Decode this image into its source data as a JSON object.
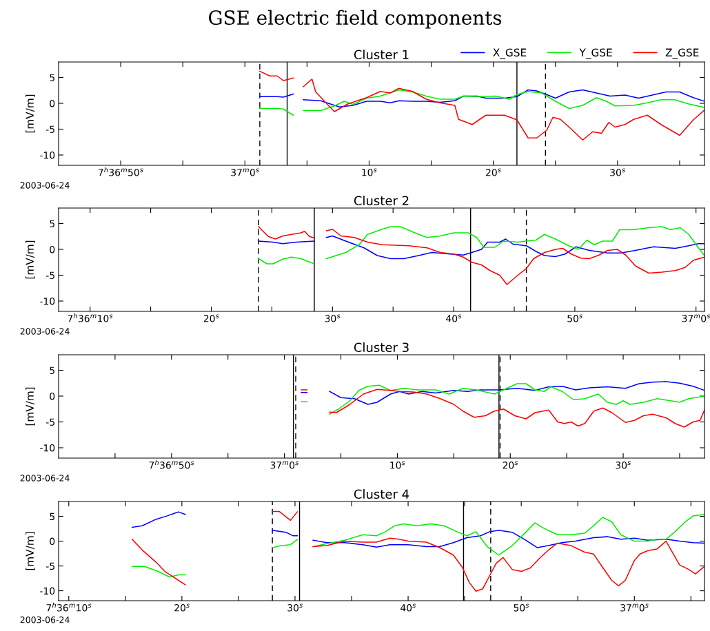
{
  "chart_data": [
    {
      "type": "line",
      "title": "GSE electric field components",
      "subtitle": "Cluster 1",
      "ylabel": "[mV/m]",
      "legend": "top right",
      "grid": false,
      "xlim": [
        "2003-06-24T07:36:45",
        "2003-06-24T07:37:37"
      ],
      "ylim": [
        -12,
        8
      ],
      "yticks": [
        -10,
        -5,
        0,
        5
      ],
      "xticks": [
        {
          "value": "2003-06-24T07:36:50",
          "label": "7$^{h}$36$^{m}$50$^{s}$"
        },
        {
          "value": "2003-06-24T07:36:55",
          "label": null
        },
        {
          "value": "2003-06-24T07:37:00",
          "label": "37$^{m}$0$^{s}$"
        },
        {
          "value": "2003-06-24T07:37:05",
          "label": null
        },
        {
          "value": "2003-06-24T07:37:10",
          "label": "10$^{s}$"
        },
        {
          "value": "2003-06-24T07:37:15",
          "label": null
        },
        {
          "value": "2003-06-24T07:37:20",
          "label": "20$^{s}$"
        },
        {
          "value": "2003-06-24T07:37:25",
          "label": null
        },
        {
          "value": "2003-06-24T07:37:30",
          "label": "30$^{s}$"
        },
        {
          "value": "2003-06-24T07:37:35",
          "label": null
        }
      ],
      "annotations": [
        "2003-06-24"
      ],
      "ref_lines": [
        {
          "axis": "x",
          "value": "2003-06-24T07:37:01.2",
          "color": "#000000",
          "line_style": "dashed"
        },
        {
          "axis": "x",
          "value": "2003-06-24T07:37:03.4",
          "color": "#000000",
          "line_style": "solid"
        },
        {
          "axis": "x",
          "value": "2003-06-24T07:37:21.9",
          "color": "#000000",
          "line_style": "solid"
        },
        {
          "axis": "x",
          "value": "2003-06-24T07:37:24.2",
          "color": "#000000",
          "line_style": "dashed"
        }
      ],
      "series": [
        {
          "name": "X_GSE",
          "color": "#0000ff",
          "x": [
            "2003-06-24T07:37:01.2",
            "2003-06-24T07:37:02.6",
            "2003-06-24T07:37:03.1",
            "2003-06-24T07:37:03.9",
            "2003-06-24T07:37:04.3",
            "2003-06-24T07:37:04.7",
            "2003-06-24T07:37:06.1",
            "2003-06-24T07:37:07.6",
            "2003-06-24T07:37:08.7",
            "2003-06-24T07:37:09.8",
            "2003-06-24T07:37:10.9",
            "2003-06-24T07:37:11.7",
            "2003-06-24T07:37:12.4",
            "2003-06-24T07:37:13.5",
            "2003-06-24T07:37:14.6",
            "2003-06-24T07:37:15.7",
            "2003-06-24T07:37:16.9",
            "2003-06-24T07:37:17.6",
            "2003-06-24T07:37:18.7",
            "2003-06-24T07:37:19.4",
            "2003-06-24T07:37:20.9",
            "2003-06-24T07:37:21.9",
            "2003-06-24T07:37:22.8",
            "2003-06-24T07:37:23.5",
            "2003-06-24T07:37:24.3",
            "2003-06-24T07:37:25.0",
            "2003-06-24T07:37:26.1",
            "2003-06-24T07:37:27.2",
            "2003-06-24T07:37:28.3",
            "2003-06-24T07:37:29.4",
            "2003-06-24T07:37:30.6",
            "2003-06-24T07:37:31.7",
            "2003-06-24T07:37:32.8",
            "2003-06-24T07:37:33.9",
            "2003-06-24T07:37:35.0",
            "2003-06-24T07:37:36.1",
            "2003-06-24T07:37:37.0"
          ],
          "values": [
            1.3,
            1.3,
            1.2,
            1.8,
            null,
            0.7,
            0.5,
            -0.7,
            -0.4,
            0.4,
            0.4,
            0.1,
            0.5,
            0.4,
            0.4,
            0.2,
            0.5,
            1.4,
            1.4,
            1.0,
            1.0,
            1.3,
            2.6,
            2.4,
            1.7,
            1.0,
            2.2,
            2.6,
            2.0,
            1.4,
            1.6,
            1.0,
            1.6,
            2.2,
            2.2,
            1.1,
            0.4
          ]
        },
        {
          "name": "Y_GSE",
          "color": "#00ee00",
          "x": [
            "2003-06-24T07:37:01.2",
            "2003-06-24T07:37:02.6",
            "2003-06-24T07:37:03.1",
            "2003-06-24T07:37:03.9",
            "2003-06-24T07:37:04.3",
            "2003-06-24T07:37:04.7",
            "2003-06-24T07:37:06.1",
            "2003-06-24T07:37:07.2",
            "2003-06-24T07:37:08.0",
            "2003-06-24T07:37:08.7",
            "2003-06-24T07:37:09.8",
            "2003-06-24T07:37:10.9",
            "2003-06-24T07:37:12.4",
            "2003-06-24T07:37:13.5",
            "2003-06-24T07:37:14.6",
            "2003-06-24T07:37:15.7",
            "2003-06-24T07:37:16.9",
            "2003-06-24T07:37:17.6",
            "2003-06-24T07:37:18.7",
            "2003-06-24T07:37:20.2",
            "2003-06-24T07:37:21.3",
            "2003-06-24T07:37:21.9",
            "2003-06-24T07:37:22.8",
            "2003-06-24T07:37:23.9",
            "2003-06-24T07:37:25.0",
            "2003-06-24T07:37:26.1",
            "2003-06-24T07:37:27.2",
            "2003-06-24T07:37:28.3",
            "2003-06-24T07:37:29.1",
            "2003-06-24T07:37:29.8",
            "2003-06-24T07:37:31.3",
            "2003-06-24T07:37:32.4",
            "2003-06-24T07:37:33.5",
            "2003-06-24T07:37:34.6",
            "2003-06-24T07:37:35.7",
            "2003-06-24T07:37:37.0"
          ],
          "values": [
            -1.0,
            -1.0,
            -1.1,
            -2.3,
            null,
            -1.4,
            -1.4,
            -0.5,
            0.4,
            -0.2,
            1.0,
            1.4,
            2.6,
            2.2,
            1.4,
            0.8,
            0.8,
            1.4,
            1.3,
            1.4,
            0.8,
            1.7,
            2.3,
            2.0,
            0.4,
            -1.0,
            -0.4,
            1.1,
            0.4,
            -0.5,
            -0.4,
            0.1,
            0.7,
            0.7,
            -0.1,
            -0.8
          ]
        },
        {
          "name": "Z_GSE",
          "color": "#ff0000",
          "x": [
            "2003-06-24T07:37:01.2",
            "2003-06-24T07:37:02.0",
            "2003-06-24T07:37:02.6",
            "2003-06-24T07:37:03.1",
            "2003-06-24T07:37:03.9",
            "2003-06-24T07:37:04.3",
            "2003-06-24T07:37:04.7",
            "2003-06-24T07:37:05.4",
            "2003-06-24T07:37:05.7",
            "2003-06-24T07:37:07.2",
            "2003-06-24T07:37:08.3",
            "2003-06-24T07:37:09.8",
            "2003-06-24T07:37:10.9",
            "2003-06-24T07:37:11.7",
            "2003-06-24T07:37:12.4",
            "2003-06-24T07:37:13.5",
            "2003-06-24T07:37:14.6",
            "2003-06-24T07:37:15.7",
            "2003-06-24T07:37:16.9",
            "2003-06-24T07:37:17.2",
            "2003-06-24T07:37:18.3",
            "2003-06-24T07:37:19.4",
            "2003-06-24T07:37:20.9",
            "2003-06-24T07:37:21.9",
            "2003-06-24T07:37:22.8",
            "2003-06-24T07:37:23.5",
            "2003-06-24T07:37:24.3",
            "2003-06-24T07:37:24.8",
            "2003-06-24T07:37:25.4",
            "2003-06-24T07:37:26.1",
            "2003-06-24T07:37:27.2",
            "2003-06-24T07:37:28.0",
            "2003-06-24T07:37:28.7",
            "2003-06-24T07:37:29.3",
            "2003-06-24T07:37:29.8",
            "2003-06-24T07:37:30.6",
            "2003-06-24T07:37:31.3",
            "2003-06-24T07:37:32.4",
            "2003-06-24T07:37:33.5",
            "2003-06-24T07:37:35.0",
            "2003-06-24T07:37:36.1",
            "2003-06-24T07:37:37.0"
          ],
          "values": [
            6.2,
            5.3,
            5.3,
            4.4,
            4.9,
            null,
            3.2,
            4.7,
            2.2,
            -1.6,
            -0.1,
            1.1,
            2.3,
            2.0,
            2.9,
            2.3,
            0.8,
            0.1,
            -0.4,
            -3.1,
            -4.1,
            -2.3,
            -2.3,
            -3.2,
            -6.7,
            -6.7,
            -5.2,
            -2.7,
            -3.1,
            -4.6,
            -7.1,
            -5.5,
            -5.8,
            -3.7,
            -4.6,
            -4.1,
            -3.1,
            -2.3,
            -4.1,
            -6.2,
            -3.2,
            -1.3
          ]
        }
      ]
    },
    {
      "type": "line",
      "title": "Cluster 2",
      "ylabel": "[mV/m]",
      "grid": false,
      "xlim": [
        "2003-06-24T07:36:07.4",
        "2003-06-24T07:37:00.7"
      ],
      "ylim": [
        -12,
        8
      ],
      "yticks": [
        -10,
        -5,
        0,
        5
      ],
      "xticks": [
        {
          "value": "2003-06-24T07:36:10",
          "label": "7$^{h}$36$^{m}$10$^{s}$"
        },
        {
          "value": "2003-06-24T07:36:15",
          "label": null
        },
        {
          "value": "2003-06-24T07:36:20",
          "label": "20$^{s}$"
        },
        {
          "value": "2003-06-24T07:36:25",
          "label": null
        },
        {
          "value": "2003-06-24T07:36:30",
          "label": "30$^{s}$"
        },
        {
          "value": "2003-06-24T07:36:35",
          "label": null
        },
        {
          "value": "2003-06-24T07:36:40",
          "label": "40$^{s}$"
        },
        {
          "value": "2003-06-24T07:36:45",
          "label": null
        },
        {
          "value": "2003-06-24T07:36:50",
          "label": "50$^{s}$"
        },
        {
          "value": "2003-06-24T07:36:55",
          "label": null
        },
        {
          "value": "2003-06-24T07:37:00",
          "label": "37$^{m}$0$^{s}$"
        }
      ],
      "annotations": [
        "2003-06-24"
      ],
      "ref_lines": [
        {
          "axis": "x",
          "value": "2003-06-24T07:36:23.9",
          "color": "#000000",
          "line_style": "dashed"
        },
        {
          "axis": "x",
          "value": "2003-06-24T07:36:28.5",
          "color": "#000000",
          "line_style": "solid"
        },
        {
          "axis": "x",
          "value": "2003-06-24T07:36:41.4",
          "color": "#000000",
          "line_style": "solid"
        },
        {
          "axis": "x",
          "value": "2003-06-24T07:36:46.0",
          "color": "#000000",
          "line_style": "dashed"
        }
      ],
      "series": [
        {
          "color": "#0000ff",
          "x": [
            "2003-06-24T07:36:23.9",
            "2003-06-24T07:36:25.1",
            "2003-06-24T07:36:25.9",
            "2003-06-24T07:36:27.0",
            "2003-06-24T07:36:28.5",
            "2003-06-24T07:36:29.0",
            "2003-06-24T07:36:29.5",
            "2003-06-24T07:36:30.0",
            "2003-06-24T07:36:31.1",
            "2003-06-24T07:36:32.6",
            "2003-06-24T07:36:33.7",
            "2003-06-24T07:36:34.8",
            "2003-06-24T07:36:35.9",
            "2003-06-24T07:36:37.1",
            "2003-06-24T07:36:38.2",
            "2003-06-24T07:36:39.7",
            "2003-06-24T07:36:40.8",
            "2003-06-24T07:36:41.5",
            "2003-06-24T07:36:42.3",
            "2003-06-24T07:36:42.8",
            "2003-06-24T07:36:43.8",
            "2003-06-24T07:36:44.3",
            "2003-06-24T07:36:44.9",
            "2003-06-24T07:36:46.0",
            "2003-06-24T07:36:46.8",
            "2003-06-24T07:36:47.5",
            "2003-06-24T07:36:48.4",
            "2003-06-24T07:36:49.2",
            "2003-06-24T07:36:50.1",
            "2003-06-24T07:36:51.2",
            "2003-06-24T07:36:52.7",
            "2003-06-24T07:36:53.8",
            "2003-06-24T07:36:55.0",
            "2003-06-24T07:36:56.5",
            "2003-06-24T07:36:58.3",
            "2003-06-24T07:36:59.4",
            "2003-06-24T07:37:00.2",
            "2003-06-24T07:37:00.7"
          ],
          "values": [
            1.6,
            1.4,
            1.1,
            1.4,
            1.6,
            null,
            2.3,
            2.6,
            1.6,
            0.3,
            -1.2,
            -1.8,
            -1.8,
            -1.2,
            -0.6,
            -0.9,
            -1.1,
            -0.6,
            0.0,
            1.4,
            1.4,
            2.0,
            1.0,
            0.7,
            -0.4,
            -1.2,
            -1.4,
            -0.9,
            0.5,
            -0.2,
            -0.7,
            -0.7,
            -0.2,
            0.5,
            0.2,
            0.7,
            1.1,
            1.1
          ]
        },
        {
          "color": "#00ee00",
          "x": [
            "2003-06-24T07:36:23.9",
            "2003-06-24T07:36:24.6",
            "2003-06-24T07:36:25.1",
            "2003-06-24T07:36:25.9",
            "2003-06-24T07:36:26.6",
            "2003-06-24T07:36:27.4",
            "2003-06-24T07:36:28.5",
            "2003-06-24T07:36:29.0",
            "2003-06-24T07:36:29.5",
            "2003-06-24T07:36:31.1",
            "2003-06-24T07:36:32.2",
            "2003-06-24T07:36:32.9",
            "2003-06-24T07:36:34.1",
            "2003-06-24T07:36:34.8",
            "2003-06-24T07:36:35.6",
            "2003-06-24T07:36:36.7",
            "2003-06-24T07:36:37.8",
            "2003-06-24T07:36:38.9",
            "2003-06-24T07:36:40.0",
            "2003-06-24T07:36:41.2",
            "2003-06-24T07:36:41.9",
            "2003-06-24T07:36:42.5",
            "2003-06-24T07:36:43.4",
            "2003-06-24T07:36:44.1",
            "2003-06-24T07:36:45.3",
            "2003-06-24T07:36:46.0",
            "2003-06-24T07:36:46.8",
            "2003-06-24T07:36:47.5",
            "2003-06-24T07:36:48.4",
            "2003-06-24T07:36:49.5",
            "2003-06-24T07:36:50.3",
            "2003-06-24T07:36:51.0",
            "2003-06-24T07:36:51.6",
            "2003-06-24T07:36:52.3",
            "2003-06-24T07:36:53.1",
            "2003-06-24T07:36:53.7",
            "2003-06-24T07:36:54.8",
            "2003-06-24T07:36:56.1",
            "2003-06-24T07:36:57.2",
            "2003-06-24T07:36:57.9",
            "2003-06-24T07:36:58.7",
            "2003-06-24T07:36:59.4",
            "2003-06-24T07:37:00.2",
            "2003-06-24T07:37:00.7"
          ],
          "values": [
            -1.8,
            -2.8,
            -2.8,
            -1.9,
            -1.5,
            -1.8,
            -2.8,
            null,
            -1.8,
            -0.6,
            0.9,
            2.9,
            3.9,
            4.4,
            4.4,
            3.3,
            2.3,
            2.6,
            3.2,
            3.2,
            2.3,
            0.4,
            0.4,
            1.6,
            1.4,
            1.6,
            1.8,
            2.9,
            2.0,
            0.7,
            0.0,
            1.8,
            0.9,
            1.6,
            1.6,
            3.8,
            3.8,
            4.2,
            4.4,
            3.8,
            4.2,
            2.9,
            0.3,
            -1.2
          ]
        },
        {
          "color": "#ff0000",
          "x": [
            "2003-06-24T07:36:23.9",
            "2003-06-24T07:36:24.7",
            "2003-06-24T07:36:25.3",
            "2003-06-24T07:36:25.9",
            "2003-06-24T07:36:27.4",
            "2003-06-24T07:36:27.7",
            "2003-06-24T07:36:28.1",
            "2003-06-24T07:36:28.5",
            "2003-06-24T07:36:29.0",
            "2003-06-24T07:36:29.5",
            "2003-06-24T07:36:30.0",
            "2003-06-24T07:36:30.7",
            "2003-06-24T07:36:31.8",
            "2003-06-24T07:36:32.9",
            "2003-06-24T07:36:34.1",
            "2003-06-24T07:36:36.3",
            "2003-06-24T07:36:37.8",
            "2003-06-24T07:36:38.9",
            "2003-06-24T07:36:40.0",
            "2003-06-24T07:36:40.8",
            "2003-06-24T07:36:41.5",
            "2003-06-24T07:36:42.3",
            "2003-06-24T07:36:43.0",
            "2003-06-24T07:36:43.8",
            "2003-06-24T07:36:44.4",
            "2003-06-24T07:36:45.3",
            "2003-06-24T07:36:46.0",
            "2003-06-24T07:36:46.6",
            "2003-06-24T07:36:47.5",
            "2003-06-24T07:36:48.4",
            "2003-06-24T07:36:49.0",
            "2003-06-24T07:36:49.7",
            "2003-06-24T07:36:50.5",
            "2003-06-24T07:36:51.2",
            "2003-06-24T07:36:52.0",
            "2003-06-24T07:36:52.7",
            "2003-06-24T07:36:53.5",
            "2003-06-24T07:36:54.2",
            "2003-06-24T07:36:55.0",
            "2003-06-24T07:36:56.1",
            "2003-06-24T07:36:57.2",
            "2003-06-24T07:36:58.3",
            "2003-06-24T07:36:59.1",
            "2003-06-24T07:36:59.8",
            "2003-06-24T07:37:00.7"
          ],
          "values": [
            4.4,
            2.5,
            2.0,
            2.6,
            3.2,
            3.5,
            2.5,
            2.2,
            null,
            3.6,
            3.9,
            2.6,
            2.3,
            1.4,
            0.9,
            0.7,
            0.3,
            -0.6,
            -0.9,
            -1.5,
            -2.5,
            -3.0,
            -4.1,
            -5.0,
            -6.8,
            -5.0,
            -3.7,
            -1.8,
            -0.6,
            0.0,
            0.2,
            -0.9,
            -1.7,
            -1.8,
            -1.1,
            -0.2,
            0.0,
            -1.1,
            -3.2,
            -4.6,
            -4.4,
            -4.1,
            -3.5,
            -2.1,
            -1.5
          ]
        }
      ]
    },
    {
      "type": "line",
      "title": "Cluster 3",
      "ylabel": "[mV/m]",
      "grid": false,
      "xlim": [
        "2003-06-24T07:36:40",
        "2003-06-24T07:37:37.2"
      ],
      "ylim": [
        -12,
        8
      ],
      "yticks": [
        -10,
        -5,
        0,
        5
      ],
      "xticks": [
        {
          "value": "2003-06-24T07:36:45",
          "label": null
        },
        {
          "value": "2003-06-24T07:36:50",
          "label": "7$^{h}$36$^{m}$50$^{s}$"
        },
        {
          "value": "2003-06-24T07:36:55",
          "label": null
        },
        {
          "value": "2003-06-24T07:37:00",
          "label": "37$^{m}$0$^{s}$"
        },
        {
          "value": "2003-06-24T07:37:05",
          "label": null
        },
        {
          "value": "2003-06-24T07:37:10",
          "label": "10$^{s}$"
        },
        {
          "value": "2003-06-24T07:37:15",
          "label": null
        },
        {
          "value": "2003-06-24T07:37:20",
          "label": "20$^{s}$"
        },
        {
          "value": "2003-06-24T07:37:25",
          "label": null
        },
        {
          "value": "2003-06-24T07:37:30",
          "label": "30$^{s}$"
        },
        {
          "value": "2003-06-24T07:37:35",
          "label": null
        }
      ],
      "annotations": [
        "2003-06-24"
      ],
      "ref_lines": [
        {
          "axis": "x",
          "value": "2003-06-24T07:37:00.8",
          "color": "#000000",
          "line_style": "solid"
        },
        {
          "axis": "x",
          "value": "2003-06-24T07:37:01.0",
          "color": "#000000",
          "line_style": "dashed"
        },
        {
          "axis": "x",
          "value": "2003-06-24T07:37:19.0",
          "color": "#000000",
          "line_style": "solid"
        },
        {
          "axis": "x",
          "value": "2003-06-24T07:37:19.1",
          "color": "#000000",
          "line_style": "dashed"
        }
      ],
      "series": [
        {
          "color": "#0000ff",
          "x": [
            "2003-06-24T07:37:01.5",
            "2003-06-24T07:37:02.0",
            "2003-06-24T07:37:03.0",
            "2003-06-24T07:37:04.0",
            "2003-06-24T07:37:05.0",
            "2003-06-24T07:37:06.2",
            "2003-06-24T07:37:07.4",
            "2003-06-24T07:37:08.2",
            "2003-06-24T07:37:09.4",
            "2003-06-24T07:37:10.2",
            "2003-06-24T07:37:11.0",
            "2003-06-24T07:37:12.2",
            "2003-06-24T07:37:13.4",
            "2003-06-24T07:37:15.0",
            "2003-06-24T07:37:16.2",
            "2003-06-24T07:37:17.4",
            "2003-06-24T07:37:19.0",
            "2003-06-24T07:37:20.6",
            "2003-06-24T07:37:22.2",
            "2003-06-24T07:37:23.4",
            "2003-06-24T07:37:24.6",
            "2003-06-24T07:37:25.8",
            "2003-06-24T07:37:27.0",
            "2003-06-24T07:37:28.6",
            "2003-06-24T07:37:30.2",
            "2003-06-24T07:37:31.4",
            "2003-06-24T07:37:32.6",
            "2003-06-24T07:37:33.8",
            "2003-06-24T07:37:35.0",
            "2003-06-24T07:37:36.2",
            "2003-06-24T07:37:37.2"
          ],
          "values": [
            0.7,
            0.7,
            null,
            0.9,
            -0.3,
            -0.5,
            -1.6,
            -1.2,
            0.4,
            0.9,
            0.4,
            0.9,
            0.6,
            1.1,
            0.9,
            1.2,
            1.2,
            1.5,
            1.1,
            1.8,
            1.9,
            1.2,
            1.6,
            1.8,
            1.5,
            2.4,
            2.7,
            2.8,
            2.5,
            1.9,
            1.1
          ]
        },
        {
          "color": "#00ee00",
          "x": [
            "2003-06-24T07:37:01.5",
            "2003-06-24T07:37:02.0",
            "2003-06-24T07:37:03.0",
            "2003-06-24T07:37:04.0",
            "2003-06-24T07:37:04.8",
            "2003-06-24T07:37:05.8",
            "2003-06-24T07:37:06.6",
            "2003-06-24T07:37:07.4",
            "2003-06-24T07:37:08.4",
            "2003-06-24T07:37:09.4",
            "2003-06-24T07:37:10.6",
            "2003-06-24T07:37:11.8",
            "2003-06-24T07:37:13.4",
            "2003-06-24T07:37:14.6",
            "2003-06-24T07:37:15.8",
            "2003-06-24T07:37:17.0",
            "2003-06-24T07:37:18.6",
            "2003-06-24T07:37:19.4",
            "2003-06-24T07:37:20.6",
            "2003-06-24T07:37:21.4",
            "2003-06-24T07:37:22.2",
            "2003-06-24T07:37:23.0",
            "2003-06-24T07:37:23.6",
            "2003-06-24T07:37:24.6",
            "2003-06-24T07:37:25.6",
            "2003-06-24T07:37:26.6",
            "2003-06-24T07:37:27.8",
            "2003-06-24T07:37:28.6",
            "2003-06-24T07:37:29.4",
            "2003-06-24T07:37:30.0",
            "2003-06-24T07:37:30.6",
            "2003-06-24T07:37:31.8",
            "2003-06-24T07:37:33.0",
            "2003-06-24T07:37:34.2",
            "2003-06-24T07:37:35.0",
            "2003-06-24T07:37:35.8",
            "2003-06-24T07:37:37.2"
          ],
          "values": [
            -1.1,
            -1.1,
            null,
            -3.5,
            -2.5,
            -0.9,
            1.1,
            1.9,
            2.1,
            1.1,
            1.5,
            1.2,
            1.2,
            0.4,
            1.5,
            1.2,
            0.4,
            1.2,
            2.4,
            2.4,
            1.2,
            0.9,
            1.8,
            0.9,
            -0.7,
            -0.5,
            0.4,
            -1.2,
            -1.6,
            -0.9,
            -1.6,
            -1.2,
            -0.5,
            -0.9,
            -1.2,
            -0.5,
            0.0
          ]
        },
        {
          "color": "#ff0000",
          "x": [
            "2003-06-24T07:37:01.5",
            "2003-06-24T07:37:02.0",
            "2003-06-24T07:37:03.0",
            "2003-06-24T07:37:04.0",
            "2003-06-24T07:37:04.6",
            "2003-06-24T07:37:05.8",
            "2003-06-24T07:37:07.0",
            "2003-06-24T07:37:08.2",
            "2003-06-24T07:37:09.4",
            "2003-06-24T07:37:10.2",
            "2003-06-24T07:37:11.4",
            "2003-06-24T07:37:12.6",
            "2003-06-24T07:37:13.8",
            "2003-06-24T07:37:15.0",
            "2003-06-24T07:37:15.8",
            "2003-06-24T07:37:16.8",
            "2003-06-24T07:37:17.8",
            "2003-06-24T07:37:18.6",
            "2003-06-24T07:37:19.4",
            "2003-06-24T07:37:20.4",
            "2003-06-24T07:37:21.4",
            "2003-06-24T07:37:22.2",
            "2003-06-24T07:37:23.4",
            "2003-06-24T07:37:24.2",
            "2003-06-24T07:37:24.8",
            "2003-06-24T07:37:25.4",
            "2003-06-24T07:37:26.0",
            "2003-06-24T07:37:26.6",
            "2003-06-24T07:37:27.4",
            "2003-06-24T07:37:28.2",
            "2003-06-24T07:37:29.0",
            "2003-06-24T07:37:30.2",
            "2003-06-24T07:37:31.0",
            "2003-06-24T07:37:31.8",
            "2003-06-24T07:37:32.6",
            "2003-06-24T07:37:33.8",
            "2003-06-24T07:37:34.6",
            "2003-06-24T07:37:35.4",
            "2003-06-24T07:37:36.2",
            "2003-06-24T07:37:36.8",
            "2003-06-24T07:37:37.2"
          ],
          "values": [
            1.2,
            1.2,
            null,
            -3.1,
            -3.2,
            -1.6,
            0.4,
            1.3,
            1.1,
            0.9,
            0.8,
            0.4,
            -0.5,
            -1.6,
            -2.9,
            -4.1,
            -3.8,
            -2.9,
            -2.5,
            -3.8,
            -4.4,
            -3.2,
            -2.7,
            -5.0,
            -5.3,
            -5.0,
            -5.8,
            -5.3,
            -2.9,
            -2.3,
            -3.2,
            -5.1,
            -4.7,
            -3.8,
            -3.5,
            -4.2,
            -5.3,
            -6.0,
            -5.0,
            -4.7,
            -2.7
          ]
        }
      ]
    },
    {
      "type": "line",
      "title": "Cluster 4",
      "ylabel": "[mV/m]",
      "grid": false,
      "xlim": [
        "2003-06-24T07:36:09.1",
        "2003-06-24T07:37:06.2"
      ],
      "ylim": [
        -12,
        8
      ],
      "yticks": [
        -10,
        -5,
        0,
        5
      ],
      "xticks": [
        {
          "value": "2003-06-24T07:36:10",
          "label": "7$^{h}$36$^{m}$10$^{s}$"
        },
        {
          "value": "2003-06-24T07:36:15",
          "label": null
        },
        {
          "value": "2003-06-24T07:36:20",
          "label": "20$^{s}$"
        },
        {
          "value": "2003-06-24T07:36:25",
          "label": null
        },
        {
          "value": "2003-06-24T07:36:30",
          "label": "30$^{s}$"
        },
        {
          "value": "2003-06-24T07:36:35",
          "label": null
        },
        {
          "value": "2003-06-24T07:36:40",
          "label": "40$^{s}$"
        },
        {
          "value": "2003-06-24T07:36:45",
          "label": null
        },
        {
          "value": "2003-06-24T07:36:50",
          "label": "50$^{s}$"
        },
        {
          "value": "2003-06-24T07:36:55",
          "label": null
        },
        {
          "value": "2003-06-24T07:37:00",
          "label": "37$^{m}$0$^{s}$"
        },
        {
          "value": "2003-06-24T07:37:05",
          "label": null
        }
      ],
      "annotations": [
        "2003-06-24"
      ],
      "ref_lines": [
        {
          "axis": "x",
          "value": "2003-06-24T07:36:28.0",
          "color": "#000000",
          "line_style": "dashed"
        },
        {
          "axis": "x",
          "value": "2003-06-24T07:36:30.4",
          "color": "#000000",
          "line_style": "solid"
        },
        {
          "axis": "x",
          "value": "2003-06-24T07:36:44.9",
          "color": "#000000",
          "line_style": "solid"
        },
        {
          "axis": "x",
          "value": "2003-06-24T07:36:47.3",
          "color": "#000000",
          "line_style": "dashed"
        }
      ],
      "series": [
        {
          "color": "#0000ff",
          "x": [
            "2003-06-24T07:36:15.6",
            "2003-06-24T07:36:16.5",
            "2003-06-24T07:36:17.7",
            "2003-06-24T07:36:18.7",
            "2003-06-24T07:36:19.7",
            "2003-06-24T07:36:20.3",
            "2003-06-24T07:36:24.0",
            "2003-06-24T07:36:28.0",
            "2003-06-24T07:36:29.2",
            "2003-06-24T07:36:29.8",
            "2003-06-24T07:36:30.2",
            "2003-06-24T07:36:31.0",
            "2003-06-24T07:36:31.6",
            "2003-06-24T07:36:32.8",
            "2003-06-24T07:36:34.4",
            "2003-06-24T07:36:36.0",
            "2003-06-24T07:36:37.2",
            "2003-06-24T07:36:38.4",
            "2003-06-24T07:36:40.0",
            "2003-06-24T07:36:41.6",
            "2003-06-24T07:36:42.8",
            "2003-06-24T07:36:44.0",
            "2003-06-24T07:36:45.2",
            "2003-06-24T07:36:46.4",
            "2003-06-24T07:36:47.2",
            "2003-06-24T07:36:48.0",
            "2003-06-24T07:36:49.2",
            "2003-06-24T07:36:50.4",
            "2003-06-24T07:36:51.4",
            "2003-06-24T07:36:52.4",
            "2003-06-24T07:36:53.6",
            "2003-06-24T07:36:54.8",
            "2003-06-24T07:36:56.4",
            "2003-06-24T07:36:57.6",
            "2003-06-24T07:36:58.8",
            "2003-06-24T07:37:00.0",
            "2003-06-24T07:37:01.2",
            "2003-06-24T07:37:02.8",
            "2003-06-24T07:37:04.0",
            "2003-06-24T07:37:05.2",
            "2003-06-24T07:37:06.2"
          ],
          "values": [
            2.8,
            3.1,
            4.4,
            5.1,
            5.9,
            5.4,
            null,
            2.2,
            1.8,
            1.1,
            1.1,
            null,
            0.2,
            -0.3,
            -0.3,
            -0.7,
            -1.2,
            -0.7,
            -0.7,
            -1.1,
            -1.1,
            -0.3,
            0.7,
            1.1,
            1.9,
            2.2,
            1.8,
            0.2,
            -1.3,
            -0.9,
            -0.3,
            0.0,
            0.7,
            0.9,
            0.4,
            0.6,
            0.2,
            0.4,
            0.0,
            -0.3,
            -0.4
          ]
        },
        {
          "color": "#00ee00",
          "x": [
            "2003-06-24T07:36:15.6",
            "2003-06-24T07:36:16.7",
            "2003-06-24T07:36:17.9",
            "2003-06-24T07:36:18.9",
            "2003-06-24T07:36:19.7",
            "2003-06-24T07:36:20.3",
            "2003-06-24T07:36:24.0",
            "2003-06-24T07:36:28.0",
            "2003-06-24T07:36:28.8",
            "2003-06-24T07:36:29.6",
            "2003-06-24T07:36:30.2",
            "2003-06-24T07:36:31.0",
            "2003-06-24T07:36:31.6",
            "2003-06-24T07:36:32.8",
            "2003-06-24T07:36:34.4",
            "2003-06-24T07:36:36.0",
            "2003-06-24T07:36:37.2",
            "2003-06-24T07:36:38.0",
            "2003-06-24T07:36:38.8",
            "2003-06-24T07:36:39.6",
            "2003-06-24T07:36:40.8",
            "2003-06-24T07:36:42.0",
            "2003-06-24T07:36:43.2",
            "2003-06-24T07:36:44.4",
            "2003-06-24T07:36:45.2",
            "2003-06-24T07:36:46.0",
            "2003-06-24T07:36:47.0",
            "2003-06-24T07:36:48.0",
            "2003-06-24T07:36:49.2",
            "2003-06-24T07:36:50.4",
            "2003-06-24T07:36:51.2",
            "2003-06-24T07:36:52.0",
            "2003-06-24T07:36:53.2",
            "2003-06-24T07:36:54.4",
            "2003-06-24T07:36:55.6",
            "2003-06-24T07:36:56.4",
            "2003-06-24T07:36:57.2",
            "2003-06-24T07:36:58.0",
            "2003-06-24T07:36:58.8",
            "2003-06-24T07:37:00.0",
            "2003-06-24T07:37:01.2",
            "2003-06-24T07:37:02.0",
            "2003-06-24T07:37:02.8",
            "2003-06-24T07:37:03.6",
            "2003-06-24T07:37:04.5",
            "2003-06-24T07:37:05.2",
            "2003-06-24T07:37:06.2"
          ],
          "values": [
            -5.1,
            -5.1,
            -6.1,
            -7.2,
            -6.8,
            -6.8,
            null,
            -1.3,
            -0.9,
            -0.7,
            0.3,
            null,
            -1.1,
            -0.5,
            0.2,
            1.3,
            1.1,
            1.9,
            3.1,
            3.5,
            3.1,
            3.5,
            3.1,
            1.8,
            1.1,
            1.9,
            -1.1,
            -2.8,
            -0.9,
            1.8,
            3.7,
            2.6,
            1.3,
            1.3,
            1.6,
            3.1,
            4.8,
            3.9,
            1.3,
            0.0,
            0.0,
            0.4,
            0.4,
            1.9,
            3.9,
            5.1,
            5.4
          ]
        },
        {
          "color": "#ff0000",
          "x": [
            "2003-06-24T07:36:15.6",
            "2003-06-24T07:36:16.5",
            "2003-06-24T07:36:17.7",
            "2003-06-24T07:36:18.5",
            "2003-06-24T07:36:19.3",
            "2003-06-24T07:36:20.3",
            "2003-06-24T07:36:24.0",
            "2003-06-24T07:36:28.0",
            "2003-06-24T07:36:28.6",
            "2003-06-24T07:36:29.6",
            "2003-06-24T07:36:30.2",
            "2003-06-24T07:36:31.0",
            "2003-06-24T07:36:31.6",
            "2003-06-24T07:36:32.8",
            "2003-06-24T07:36:34.4",
            "2003-06-24T07:36:36.0",
            "2003-06-24T07:36:37.2",
            "2003-06-24T07:36:38.4",
            "2003-06-24T07:36:39.2",
            "2003-06-24T07:36:40.0",
            "2003-06-24T07:36:41.6",
            "2003-06-24T07:36:42.8",
            "2003-06-24T07:36:44.0",
            "2003-06-24T07:36:44.8",
            "2003-06-24T07:36:45.4",
            "2003-06-24T07:36:46.0",
            "2003-06-24T07:36:46.6",
            "2003-06-24T07:36:47.2",
            "2003-06-24T07:36:47.8",
            "2003-06-24T07:36:48.4",
            "2003-06-24T07:36:49.2",
            "2003-06-24T07:36:50.0",
            "2003-06-24T07:36:50.8",
            "2003-06-24T07:36:51.6",
            "2003-06-24T07:36:52.4",
            "2003-06-24T07:36:53.2",
            "2003-06-24T07:36:54.4",
            "2003-06-24T07:36:55.6",
            "2003-06-24T07:36:56.4",
            "2003-06-24T07:36:57.2",
            "2003-06-24T07:36:58.0",
            "2003-06-24T07:36:58.6",
            "2003-06-24T07:36:59.2",
            "2003-06-24T07:37:00.0",
            "2003-06-24T07:37:00.5",
            "2003-06-24T07:37:01.2",
            "2003-06-24T07:37:02.0",
            "2003-06-24T07:37:02.8",
            "2003-06-24T07:37:03.2",
            "2003-06-24T07:37:04.0",
            "2003-06-24T07:37:04.8",
            "2003-06-24T07:37:05.4",
            "2003-06-24T07:37:06.2"
          ],
          "values": [
            0.4,
            -1.8,
            -4.2,
            -6.1,
            -7.3,
            -8.8,
            null,
            6.0,
            6.0,
            4.2,
            5.9,
            null,
            -1.1,
            -0.9,
            0.0,
            -0.2,
            -0.2,
            0.6,
            0.4,
            0.0,
            -0.2,
            -1.3,
            -2.8,
            -5.3,
            -8.3,
            -10.1,
            -9.6,
            -7.0,
            -4.4,
            -3.3,
            -5.7,
            -6.1,
            -5.4,
            -3.5,
            -1.8,
            -0.4,
            -0.9,
            -2.2,
            -2.6,
            -5.3,
            -7.9,
            -9.0,
            -7.9,
            -3.9,
            -2.6,
            -1.9,
            -1.6,
            0.0,
            -1.6,
            -4.8,
            -5.7,
            -6.6,
            -5.1
          ]
        }
      ]
    }
  ]
}
